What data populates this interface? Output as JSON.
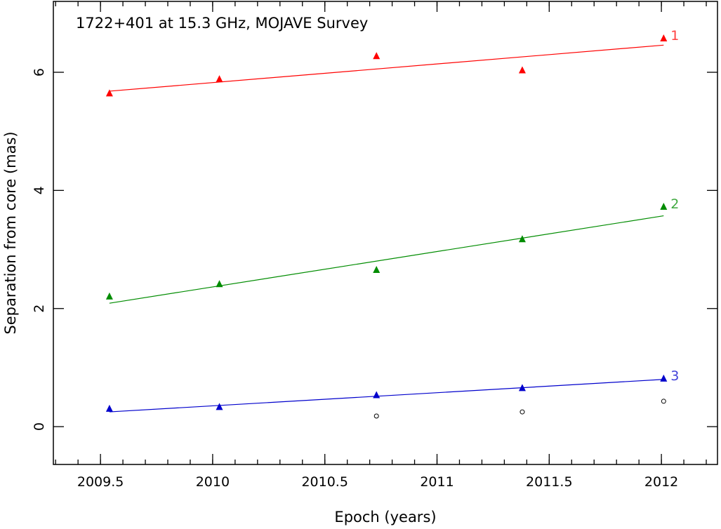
{
  "chart_data": {
    "type": "scatter",
    "title": "1722+401 at 15.3 GHz, MOJAVE Survey",
    "xlabel": "Epoch (years)",
    "ylabel": "Separation from core (mas)",
    "xlim": [
      2009.29,
      2012.25
    ],
    "ylim": [
      -0.64,
      7.2
    ],
    "xticks": [
      2009.5,
      2010,
      2010.5,
      2011,
      2011.5,
      2012
    ],
    "xtick_labels": [
      "2009.5",
      "2010",
      "2010.5",
      "2011",
      "2011.5",
      "2012"
    ],
    "yticks": [
      0,
      2,
      4,
      6
    ],
    "ytick_labels": [
      "0",
      "2",
      "4",
      "6"
    ],
    "grid": false,
    "series": [
      {
        "name": "1",
        "color": "#ff0000",
        "x": [
          2009.54,
          2010.03,
          2010.73,
          2011.38,
          2012.01
        ],
        "y": [
          5.64,
          5.88,
          6.27,
          6.03,
          6.57
        ],
        "fit": [
          [
            2009.54,
            5.68
          ],
          [
            2012.01,
            6.46
          ]
        ]
      },
      {
        "name": "2",
        "color": "#008c00",
        "x": [
          2009.54,
          2010.03,
          2010.73,
          2011.38,
          2012.01
        ],
        "y": [
          2.2,
          2.41,
          2.65,
          3.17,
          3.72
        ],
        "fit": [
          [
            2009.54,
            2.09
          ],
          [
            2012.01,
            3.57
          ]
        ]
      },
      {
        "name": "3",
        "color": "#0000cc",
        "x": [
          2009.54,
          2010.03,
          2010.73,
          2011.38,
          2012.01
        ],
        "y": [
          0.3,
          0.33,
          0.53,
          0.65,
          0.81
        ],
        "fit": [
          [
            2009.54,
            0.25
          ],
          [
            2012.01,
            0.8
          ]
        ]
      }
    ],
    "unassigned": {
      "color": "#000000",
      "x": [
        2010.73,
        2011.38,
        2012.01
      ],
      "y": [
        0.18,
        0.25,
        0.43
      ]
    }
  }
}
